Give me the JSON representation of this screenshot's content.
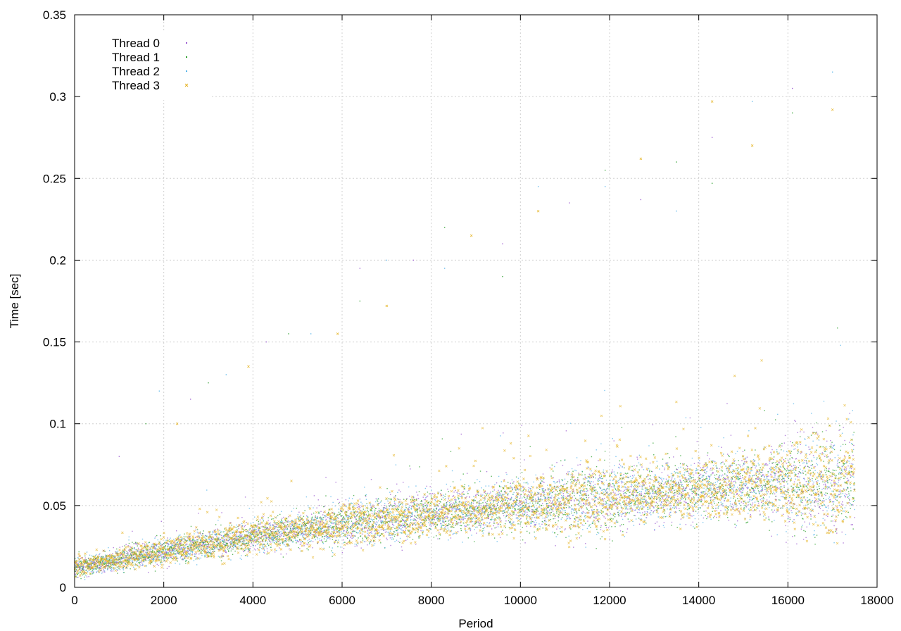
{
  "chart_data": {
    "type": "scatter",
    "xlabel": "Period",
    "ylabel": "Time [sec]",
    "xlim": [
      0,
      18000
    ],
    "ylim": [
      0,
      0.35
    ],
    "x_ticks": [
      0,
      2000,
      4000,
      6000,
      8000,
      10000,
      12000,
      14000,
      16000,
      18000
    ],
    "x_tick_labels": [
      "0",
      "2000",
      "4000",
      "6000",
      "8000",
      "10000",
      "12000",
      "14000",
      "16000",
      "18000"
    ],
    "y_ticks": [
      0,
      0.05,
      0.1,
      0.15,
      0.2,
      0.25,
      0.3,
      0.35
    ],
    "y_tick_labels": [
      "0",
      "0.05",
      "0.1",
      "0.15",
      "0.2",
      "0.25",
      "0.3",
      "0.35"
    ],
    "grid": true,
    "legend_position": "top-left",
    "series": [
      {
        "name": "Thread 0",
        "color": "#9b59d0",
        "marker": "dot"
      },
      {
        "name": "Thread 1",
        "color": "#2ca02c",
        "marker": "dot"
      },
      {
        "name": "Thread 2",
        "color": "#56b4e9",
        "marker": "dot"
      },
      {
        "name": "Thread 3",
        "color": "#e6b422",
        "marker": "x"
      }
    ],
    "x_max_data": 17500,
    "trend_points": [
      {
        "x": 0,
        "y": 0.012
      },
      {
        "x": 2000,
        "y": 0.022
      },
      {
        "x": 4000,
        "y": 0.031
      },
      {
        "x": 6000,
        "y": 0.038
      },
      {
        "x": 8000,
        "y": 0.045
      },
      {
        "x": 10000,
        "y": 0.05
      },
      {
        "x": 12000,
        "y": 0.055
      },
      {
        "x": 14000,
        "y": 0.06
      },
      {
        "x": 16000,
        "y": 0.064
      },
      {
        "x": 17500,
        "y": 0.065
      }
    ],
    "outliers": [
      {
        "x": 1000,
        "y": 0.08
      },
      {
        "x": 1600,
        "y": 0.1
      },
      {
        "x": 1900,
        "y": 0.12
      },
      {
        "x": 2300,
        "y": 0.1
      },
      {
        "x": 2600,
        "y": 0.115
      },
      {
        "x": 3000,
        "y": 0.125
      },
      {
        "x": 3400,
        "y": 0.13
      },
      {
        "x": 3900,
        "y": 0.135
      },
      {
        "x": 4300,
        "y": 0.15
      },
      {
        "x": 4800,
        "y": 0.155
      },
      {
        "x": 5300,
        "y": 0.155
      },
      {
        "x": 5900,
        "y": 0.155
      },
      {
        "x": 6400,
        "y": 0.195
      },
      {
        "x": 6400,
        "y": 0.175
      },
      {
        "x": 7000,
        "y": 0.2
      },
      {
        "x": 7000,
        "y": 0.172
      },
      {
        "x": 7600,
        "y": 0.2
      },
      {
        "x": 8300,
        "y": 0.22
      },
      {
        "x": 8300,
        "y": 0.195
      },
      {
        "x": 8900,
        "y": 0.215
      },
      {
        "x": 9600,
        "y": 0.21
      },
      {
        "x": 9600,
        "y": 0.19
      },
      {
        "x": 10400,
        "y": 0.245
      },
      {
        "x": 10400,
        "y": 0.23
      },
      {
        "x": 11100,
        "y": 0.235
      },
      {
        "x": 11900,
        "y": 0.255
      },
      {
        "x": 11900,
        "y": 0.245
      },
      {
        "x": 12700,
        "y": 0.262
      },
      {
        "x": 12700,
        "y": 0.237
      },
      {
        "x": 13500,
        "y": 0.26
      },
      {
        "x": 13500,
        "y": 0.23
      },
      {
        "x": 14300,
        "y": 0.297
      },
      {
        "x": 14300,
        "y": 0.275
      },
      {
        "x": 14300,
        "y": 0.247
      },
      {
        "x": 15200,
        "y": 0.297
      },
      {
        "x": 15200,
        "y": 0.27
      },
      {
        "x": 16100,
        "y": 0.305
      },
      {
        "x": 16100,
        "y": 0.29
      },
      {
        "x": 17000,
        "y": 0.315
      },
      {
        "x": 17000,
        "y": 0.292
      }
    ]
  }
}
